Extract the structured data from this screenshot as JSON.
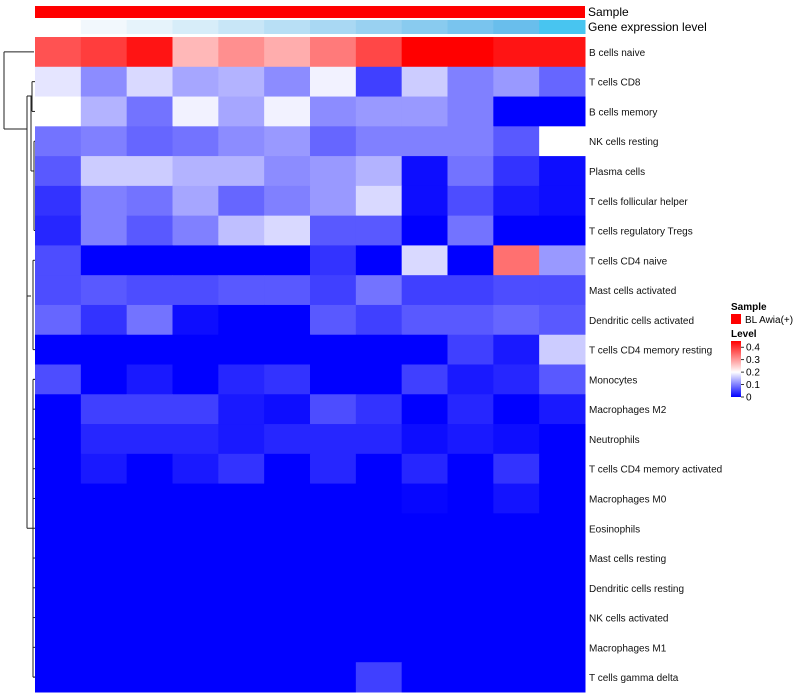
{
  "chart_data": {
    "type": "heatmap",
    "annotations": {
      "sample_label": "Sample",
      "expression_label": "Gene expression level",
      "sample_color": "#ff0000",
      "expression_colors": [
        "#ffffff",
        "#f2f8fd",
        "#e6f3fb",
        "#d7edf9",
        "#c8e6f7",
        "#b8dff5",
        "#a9d8f3",
        "#99d1f1",
        "#89cbef",
        "#79c4ee",
        "#69beec",
        "#58b8eb",
        "#48c5f0"
      ]
    },
    "rows": [
      "B cells naive",
      "T cells CD8",
      "B cells memory",
      "NK cells resting",
      "Plasma cells",
      "T cells follicular helper",
      "T cells regulatory  Tregs",
      "T cells CD4 naive",
      "Mast cells activated",
      "Dendritic cells activated",
      "T cells CD4 memory resting",
      "Monocytes",
      "Macrophages M2",
      "Neutrophils",
      "T cells CD4 memory activated",
      "Macrophages M0",
      "Eosinophils",
      "Mast cells resting",
      "Dendritic cells resting",
      "NK cells activated",
      "Macrophages M1",
      "T cells gamma delta"
    ],
    "values": [
      [
        0.37,
        0.39,
        0.43,
        0.27,
        0.31,
        0.28,
        0.33,
        0.38,
        0.45,
        0.45,
        0.43,
        0.43
      ],
      [
        0.18,
        0.11,
        0.17,
        0.13,
        0.14,
        0.11,
        0.19,
        0.05,
        0.16,
        0.1,
        0.12,
        0.08
      ],
      [
        0.2,
        0.14,
        0.09,
        0.19,
        0.13,
        0.19,
        0.11,
        0.12,
        0.12,
        0.1,
        0.0,
        0.0
      ],
      [
        0.09,
        0.1,
        0.08,
        0.09,
        0.11,
        0.12,
        0.08,
        0.1,
        0.1,
        0.1,
        0.07,
        0.2
      ],
      [
        0.07,
        0.16,
        0.16,
        0.14,
        0.14,
        0.11,
        0.12,
        0.14,
        0.01,
        0.09,
        0.04,
        0.01
      ],
      [
        0.04,
        0.1,
        0.09,
        0.13,
        0.08,
        0.1,
        0.12,
        0.17,
        0.01,
        0.06,
        0.02,
        0.01
      ],
      [
        0.03,
        0.1,
        0.07,
        0.1,
        0.15,
        0.17,
        0.07,
        0.07,
        0.0,
        0.09,
        0.0,
        0.0
      ],
      [
        0.06,
        0.0,
        0.0,
        0.0,
        0.0,
        0.0,
        0.04,
        0.0,
        0.17,
        0.0,
        0.34,
        0.12
      ],
      [
        0.06,
        0.07,
        0.06,
        0.06,
        0.07,
        0.07,
        0.05,
        0.09,
        0.05,
        0.05,
        0.06,
        0.06
      ],
      [
        0.08,
        0.04,
        0.09,
        0.01,
        0.0,
        0.0,
        0.07,
        0.05,
        0.07,
        0.07,
        0.08,
        0.07
      ],
      [
        0.0,
        0.0,
        0.0,
        0.0,
        0.0,
        0.0,
        0.0,
        0.0,
        0.0,
        0.05,
        0.02,
        0.16
      ],
      [
        0.06,
        0.0,
        0.02,
        0.0,
        0.03,
        0.04,
        0.0,
        0.0,
        0.05,
        0.02,
        0.03,
        0.07
      ],
      [
        0.0,
        0.05,
        0.05,
        0.05,
        0.02,
        0.01,
        0.06,
        0.04,
        0.0,
        0.03,
        0.0,
        0.02
      ],
      [
        0.0,
        0.03,
        0.03,
        0.03,
        0.02,
        0.03,
        0.03,
        0.03,
        0.01,
        0.02,
        0.01,
        0.0
      ],
      [
        0.0,
        0.02,
        0.0,
        0.02,
        0.04,
        0.0,
        0.03,
        0.0,
        0.03,
        0.0,
        0.04,
        0.0
      ],
      [
        0.0,
        0.0,
        0.0,
        0.0,
        0.0,
        0.0,
        0.0,
        0.0,
        0.005,
        0.0,
        0.015,
        0.0
      ],
      [
        0.0,
        0.0,
        0.0,
        0.0,
        0.0,
        0.0,
        0.0,
        0.0,
        0.0,
        0.0,
        0.0,
        0.0
      ],
      [
        0.0,
        0.0,
        0.0,
        0.0,
        0.0,
        0.0,
        0.0,
        0.0,
        0.0,
        0.0,
        0.0,
        0.0
      ],
      [
        0.0,
        0.0,
        0.0,
        0.0,
        0.0,
        0.0,
        0.0,
        0.0,
        0.0,
        0.0,
        0.0,
        0.0
      ],
      [
        0.0,
        0.0,
        0.0,
        0.0,
        0.0,
        0.0,
        0.0,
        0.0,
        0.0,
        0.0,
        0.0,
        0.0
      ],
      [
        0.0,
        0.0,
        0.0,
        0.0,
        0.0,
        0.0,
        0.0,
        0.0,
        0.0,
        0.0,
        0.0,
        0.0
      ],
      [
        0.0,
        0.0,
        0.0,
        0.0,
        0.0,
        0.0,
        0.0,
        0.05,
        0.0,
        0.0,
        0.0,
        0.0
      ]
    ],
    "color_scale": {
      "stops": [
        {
          "value": 0.0,
          "color": "#0000ff"
        },
        {
          "value": 0.2,
          "color": "#ffffff"
        },
        {
          "value": 0.45,
          "color": "#ff0000"
        }
      ]
    },
    "legend": {
      "sample_title": "Sample",
      "sample_entry": "BL Awia(+)",
      "sample_color": "#ff0000",
      "level_title": "Level",
      "level_ticks": [
        "0.4",
        "0.3",
        "0.2",
        "0.1",
        "0"
      ],
      "level_tick_values": [
        0.4,
        0.3,
        0.2,
        0.1,
        0.0
      ],
      "placement": "right"
    }
  }
}
